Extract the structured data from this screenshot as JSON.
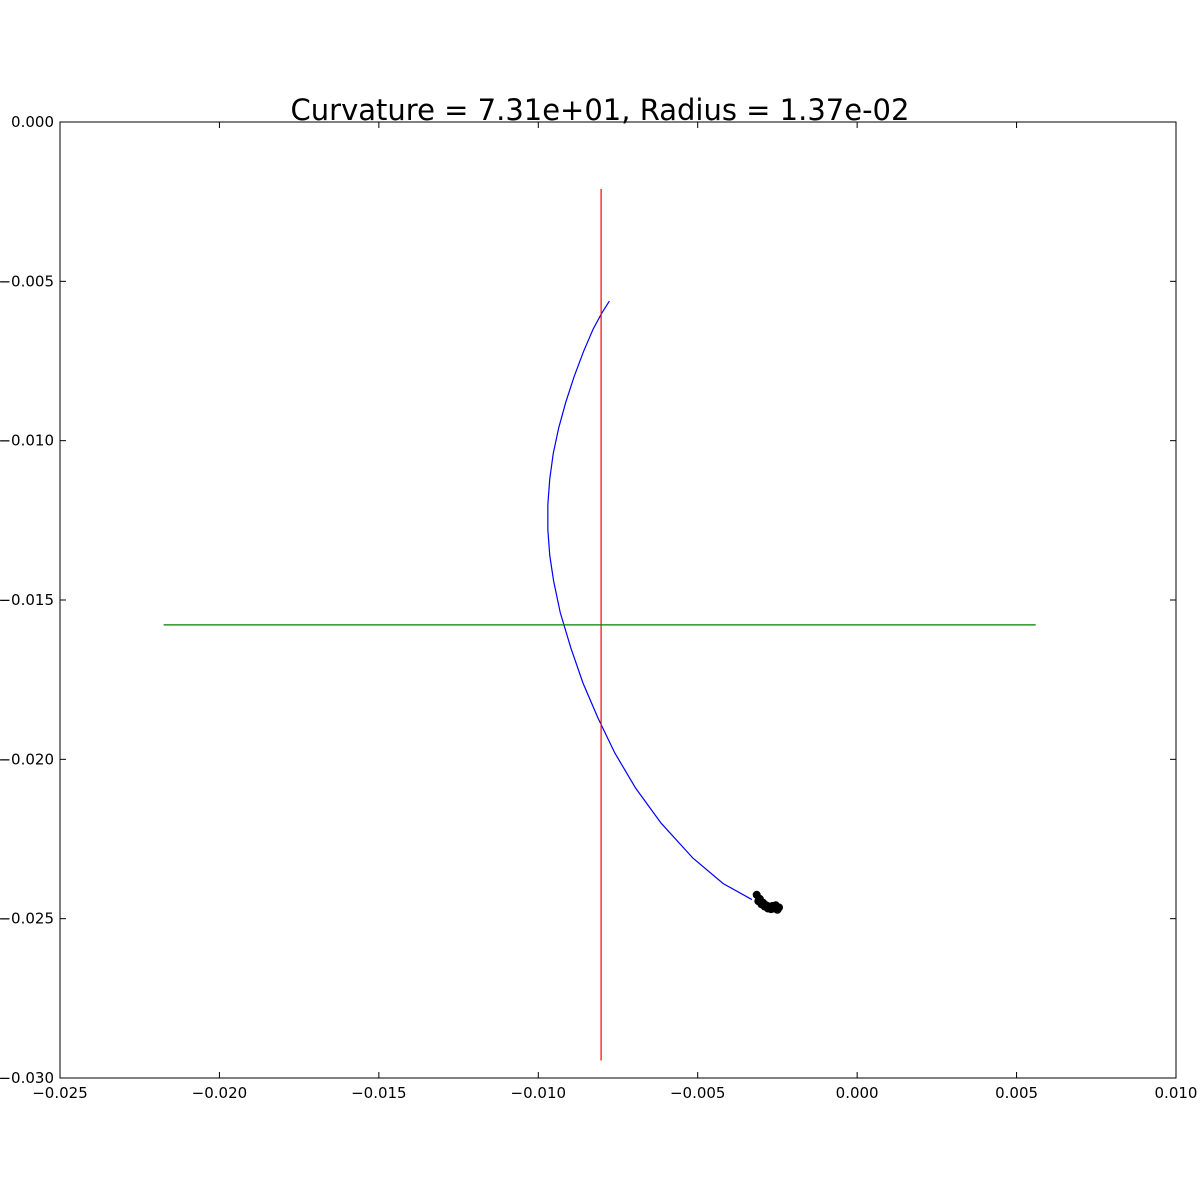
{
  "chart_data": {
    "type": "line",
    "title": "Curvature = 7.31e+01, Radius = 1.37e-02",
    "xlabel": "",
    "ylabel": "",
    "xlim": [
      -0.025,
      0.01
    ],
    "ylim": [
      -0.03,
      0.0
    ],
    "grid": false,
    "x_ticks": [
      -0.025,
      -0.02,
      -0.015,
      -0.01,
      -0.005,
      0.0,
      0.005,
      0.01
    ],
    "x_tick_labels": [
      "−0.025",
      "−0.020",
      "−0.015",
      "−0.010",
      "−0.005",
      "0.000",
      "0.005",
      "0.010"
    ],
    "y_ticks": [
      0.0,
      -0.005,
      -0.01,
      -0.015,
      -0.02,
      -0.025,
      -0.03
    ],
    "y_tick_labels": [
      "0.000",
      "−0.005",
      "−0.010",
      "−0.015",
      "−0.020",
      "−0.025",
      "−0.030"
    ],
    "series": [
      {
        "kind": "line",
        "color": "#0000ff",
        "x": [
          -0.00777,
          -0.00801,
          -0.00828,
          -0.00858,
          -0.00888,
          -0.00914,
          -0.00936,
          -0.00953,
          -0.00964,
          -0.0097,
          -0.0097,
          -0.00964,
          -0.00952,
          -0.00931,
          -0.00898,
          -0.0086,
          -0.00813,
          -0.0076,
          -0.00695,
          -0.00615,
          -0.00515,
          -0.0042,
          -0.0033
        ],
        "y": [
          -0.00562,
          -0.006,
          -0.0065,
          -0.0072,
          -0.008,
          -0.0088,
          -0.0096,
          -0.0104,
          -0.0112,
          -0.012,
          -0.0128,
          -0.0136,
          -0.0144,
          -0.0154,
          -0.0165,
          -0.0176,
          -0.0187,
          -0.0198,
          -0.0209,
          -0.022,
          -0.0231,
          -0.0239,
          -0.0244
        ]
      },
      {
        "kind": "line",
        "color": "#ff0000",
        "x": [
          -0.00803,
          -0.00803
        ],
        "y": [
          -0.0021,
          -0.02945
        ]
      },
      {
        "kind": "line",
        "color": "#008000",
        "x": [
          -0.02175,
          0.0056
        ],
        "y": [
          -0.01578,
          -0.01578
        ]
      },
      {
        "kind": "scatter",
        "color": "#000000",
        "x": [
          -0.00315,
          -0.00305,
          -0.00295,
          -0.00285,
          -0.00275,
          -0.00265,
          -0.00255,
          -0.00245,
          -0.0031,
          -0.003,
          -0.0029,
          -0.0028,
          -0.0027,
          -0.0026,
          -0.0025
        ],
        "y": [
          -0.02425,
          -0.02438,
          -0.0245,
          -0.02458,
          -0.02462,
          -0.0246,
          -0.02458,
          -0.02465,
          -0.02445,
          -0.02455,
          -0.02462,
          -0.02468,
          -0.0247,
          -0.02468,
          -0.02472
        ]
      }
    ]
  }
}
